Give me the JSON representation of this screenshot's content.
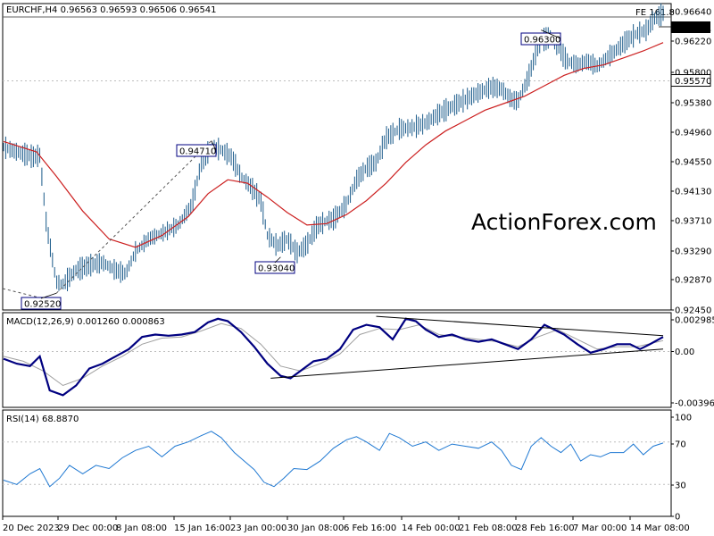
{
  "chart_data": [
    {
      "type": "candlestick",
      "symbol": "EURCHF,H4",
      "ohlc_header": "0.96563 0.96593 0.96506 0.96541",
      "moving_average_color": "#cc2020",
      "bar_color": "#1a5a8a",
      "watermark": "ActionForex.com",
      "y_ticks": [
        "0.96640",
        "0.96220",
        "0.95800",
        "0.95380",
        "0.94960",
        "0.94550",
        "0.94130",
        "0.93710",
        "0.93290",
        "0.92870",
        "0.92450"
      ],
      "ylim": [
        0.9228,
        0.9668
      ],
      "current_price": "0.96541",
      "support_level": "0.95570",
      "fib_label": "FE 161.8",
      "annotations": [
        {
          "label": "0.92520",
          "t": 0.08,
          "price": 0.9252
        },
        {
          "label": "0.94710",
          "t": 0.315,
          "price": 0.9471
        },
        {
          "label": "0.93040",
          "t": 0.42,
          "price": 0.9304
        },
        {
          "label": "0.96300",
          "t": 0.815,
          "price": 0.963
        }
      ],
      "price_path": [
        [
          0.0,
          0.9462
        ],
        [
          0.02,
          0.9455
        ],
        [
          0.045,
          0.9448
        ],
        [
          0.055,
          0.945
        ],
        [
          0.065,
          0.935
        ],
        [
          0.08,
          0.9268
        ],
        [
          0.09,
          0.9265
        ],
        [
          0.11,
          0.9285
        ],
        [
          0.13,
          0.9292
        ],
        [
          0.15,
          0.9296
        ],
        [
          0.17,
          0.9285
        ],
        [
          0.185,
          0.928
        ],
        [
          0.2,
          0.9312
        ],
        [
          0.22,
          0.933
        ],
        [
          0.245,
          0.934
        ],
        [
          0.265,
          0.935
        ],
        [
          0.285,
          0.9378
        ],
        [
          0.3,
          0.944
        ],
        [
          0.315,
          0.9462
        ],
        [
          0.33,
          0.9458
        ],
        [
          0.345,
          0.9448
        ],
        [
          0.36,
          0.942
        ],
        [
          0.375,
          0.9405
        ],
        [
          0.39,
          0.9385
        ],
        [
          0.4,
          0.9335
        ],
        [
          0.415,
          0.932
        ],
        [
          0.43,
          0.933
        ],
        [
          0.445,
          0.931
        ],
        [
          0.46,
          0.9322
        ],
        [
          0.475,
          0.9348
        ],
        [
          0.49,
          0.9356
        ],
        [
          0.5,
          0.9358
        ],
        [
          0.52,
          0.938
        ],
        [
          0.535,
          0.9415
        ],
        [
          0.55,
          0.9432
        ],
        [
          0.565,
          0.944
        ],
        [
          0.58,
          0.9475
        ],
        [
          0.6,
          0.9488
        ],
        [
          0.62,
          0.949
        ],
        [
          0.64,
          0.9496
        ],
        [
          0.66,
          0.951
        ],
        [
          0.68,
          0.952
        ],
        [
          0.7,
          0.953
        ],
        [
          0.72,
          0.954
        ],
        [
          0.74,
          0.9548
        ],
        [
          0.755,
          0.9545
        ],
        [
          0.77,
          0.953
        ],
        [
          0.78,
          0.9528
        ],
        [
          0.795,
          0.956
        ],
        [
          0.805,
          0.959
        ],
        [
          0.815,
          0.9615
        ],
        [
          0.83,
          0.962
        ],
        [
          0.84,
          0.9605
        ],
        [
          0.855,
          0.9585
        ],
        [
          0.87,
          0.958
        ],
        [
          0.885,
          0.9585
        ],
        [
          0.9,
          0.9578
        ],
        [
          0.915,
          0.959
        ],
        [
          0.93,
          0.9602
        ],
        [
          0.945,
          0.9615
        ],
        [
          0.96,
          0.9625
        ],
        [
          0.975,
          0.963
        ],
        [
          0.985,
          0.9645
        ],
        [
          1.0,
          0.9654
        ]
      ],
      "ma_path": [
        [
          0.0,
          0.947
        ],
        [
          0.05,
          0.9455
        ],
        [
          0.08,
          0.942
        ],
        [
          0.12,
          0.937
        ],
        [
          0.16,
          0.933
        ],
        [
          0.2,
          0.9318
        ],
        [
          0.24,
          0.9335
        ],
        [
          0.28,
          0.9362
        ],
        [
          0.31,
          0.9395
        ],
        [
          0.34,
          0.9415
        ],
        [
          0.37,
          0.941
        ],
        [
          0.4,
          0.939
        ],
        [
          0.43,
          0.9368
        ],
        [
          0.46,
          0.935
        ],
        [
          0.49,
          0.9352
        ],
        [
          0.52,
          0.9365
        ],
        [
          0.55,
          0.9385
        ],
        [
          0.58,
          0.941
        ],
        [
          0.61,
          0.944
        ],
        [
          0.64,
          0.9465
        ],
        [
          0.67,
          0.9485
        ],
        [
          0.7,
          0.95
        ],
        [
          0.73,
          0.9515
        ],
        [
          0.76,
          0.9525
        ],
        [
          0.79,
          0.9535
        ],
        [
          0.82,
          0.955
        ],
        [
          0.85,
          0.9565
        ],
        [
          0.88,
          0.9575
        ],
        [
          0.91,
          0.958
        ],
        [
          0.94,
          0.959
        ],
        [
          0.97,
          0.96
        ],
        [
          1.0,
          0.9612
        ]
      ],
      "fib_path": [
        [
          0.08,
          0.9252
        ],
        [
          0.315,
          0.9471
        ]
      ],
      "x_ticks": [
        "20 Dec 2023",
        "29 Dec 00:00",
        "8 Jan 08:00",
        "15 Jan 16:00",
        "23 Jan 00:00",
        "30 Jan 08:00",
        "6 Feb 16:00",
        "14 Feb 00:00",
        "21 Feb 08:00",
        "28 Feb 16:00",
        "7 Mar 00:00",
        "14 Mar 08:00"
      ]
    },
    {
      "type": "line",
      "label": "MACD(12,26,9) 0.001260 0.000863",
      "y_ticks": [
        "0.002985",
        "0.00",
        "-0.00396"
      ],
      "ylim": [
        -0.0046,
        0.0032
      ],
      "zero_value": 0.0,
      "macd_path": [
        [
          0.0,
          -0.0006
        ],
        [
          0.02,
          -0.001
        ],
        [
          0.04,
          -0.0012
        ],
        [
          0.055,
          -0.0004
        ],
        [
          0.07,
          -0.0032
        ],
        [
          0.09,
          -0.0036
        ],
        [
          0.11,
          -0.0028
        ],
        [
          0.13,
          -0.0014
        ],
        [
          0.15,
          -0.001
        ],
        [
          0.17,
          -0.0004
        ],
        [
          0.19,
          0.0002
        ],
        [
          0.21,
          0.0012
        ],
        [
          0.23,
          0.0014
        ],
        [
          0.25,
          0.0013
        ],
        [
          0.27,
          0.0014
        ],
        [
          0.29,
          0.0016
        ],
        [
          0.31,
          0.0024
        ],
        [
          0.325,
          0.0027
        ],
        [
          0.34,
          0.0025
        ],
        [
          0.36,
          0.0016
        ],
        [
          0.38,
          0.0004
        ],
        [
          0.4,
          -0.001
        ],
        [
          0.42,
          -0.002
        ],
        [
          0.435,
          -0.0022
        ],
        [
          0.45,
          -0.0016
        ],
        [
          0.47,
          -0.0008
        ],
        [
          0.49,
          -0.0006
        ],
        [
          0.51,
          0.0002
        ],
        [
          0.53,
          0.0018
        ],
        [
          0.55,
          0.0022
        ],
        [
          0.57,
          0.002
        ],
        [
          0.59,
          0.001
        ],
        [
          0.61,
          0.0027
        ],
        [
          0.625,
          0.0025
        ],
        [
          0.64,
          0.0018
        ],
        [
          0.66,
          0.0012
        ],
        [
          0.68,
          0.0014
        ],
        [
          0.7,
          0.001
        ],
        [
          0.72,
          0.0008
        ],
        [
          0.74,
          0.001
        ],
        [
          0.76,
          0.0006
        ],
        [
          0.78,
          0.0002
        ],
        [
          0.8,
          0.001
        ],
        [
          0.82,
          0.0022
        ],
        [
          0.835,
          0.0018
        ],
        [
          0.85,
          0.0014
        ],
        [
          0.87,
          0.0006
        ],
        [
          0.89,
          -0.0001
        ],
        [
          0.91,
          0.0002
        ],
        [
          0.93,
          0.0006
        ],
        [
          0.95,
          0.0006
        ],
        [
          0.965,
          0.0002
        ],
        [
          0.98,
          0.0006
        ],
        [
          1.0,
          0.0012
        ]
      ],
      "signal_path": [
        [
          0.0,
          -0.0004
        ],
        [
          0.03,
          -0.0008
        ],
        [
          0.06,
          -0.0016
        ],
        [
          0.09,
          -0.0028
        ],
        [
          0.12,
          -0.0022
        ],
        [
          0.15,
          -0.0012
        ],
        [
          0.18,
          -0.0004
        ],
        [
          0.21,
          0.0006
        ],
        [
          0.24,
          0.0011
        ],
        [
          0.27,
          0.0012
        ],
        [
          0.3,
          0.0017
        ],
        [
          0.33,
          0.0023
        ],
        [
          0.36,
          0.0019
        ],
        [
          0.39,
          0.0006
        ],
        [
          0.42,
          -0.0012
        ],
        [
          0.45,
          -0.0016
        ],
        [
          0.48,
          -0.001
        ],
        [
          0.51,
          -0.0002
        ],
        [
          0.54,
          0.0014
        ],
        [
          0.57,
          0.0019
        ],
        [
          0.6,
          0.0018
        ],
        [
          0.63,
          0.0022
        ],
        [
          0.66,
          0.0014
        ],
        [
          0.69,
          0.0012
        ],
        [
          0.72,
          0.001
        ],
        [
          0.75,
          0.0008
        ],
        [
          0.78,
          0.0004
        ],
        [
          0.81,
          0.0012
        ],
        [
          0.84,
          0.0018
        ],
        [
          0.87,
          0.001
        ],
        [
          0.9,
          0.0002
        ],
        [
          0.93,
          0.0004
        ],
        [
          0.96,
          0.0004
        ],
        [
          1.0,
          0.0009
        ]
      ],
      "trendline_upper": [
        [
          0.565,
          0.0029
        ],
        [
          1.0,
          0.0013
        ]
      ],
      "trendline_lower": [
        [
          0.405,
          -0.0022
        ],
        [
          1.0,
          0.0002
        ]
      ],
      "macd_color": "#000080",
      "signal_color": "#a0a0a0"
    },
    {
      "type": "line",
      "label": "RSI(14) 68.8870",
      "y_ticks": [
        "100",
        "70",
        "30",
        "0"
      ],
      "ylim": [
        0,
        100
      ],
      "levels": [
        70,
        30
      ],
      "rsi_color": "#1e78d2",
      "rsi_path": [
        [
          0.0,
          34
        ],
        [
          0.02,
          30
        ],
        [
          0.04,
          40
        ],
        [
          0.055,
          45
        ],
        [
          0.07,
          28
        ],
        [
          0.085,
          36
        ],
        [
          0.1,
          48
        ],
        [
          0.12,
          40
        ],
        [
          0.14,
          48
        ],
        [
          0.16,
          45
        ],
        [
          0.18,
          55
        ],
        [
          0.2,
          62
        ],
        [
          0.22,
          66
        ],
        [
          0.24,
          56
        ],
        [
          0.26,
          66
        ],
        [
          0.28,
          70
        ],
        [
          0.3,
          76
        ],
        [
          0.315,
          80
        ],
        [
          0.33,
          74
        ],
        [
          0.35,
          60
        ],
        [
          0.365,
          52
        ],
        [
          0.38,
          44
        ],
        [
          0.395,
          32
        ],
        [
          0.41,
          28
        ],
        [
          0.425,
          36
        ],
        [
          0.44,
          45
        ],
        [
          0.46,
          44
        ],
        [
          0.48,
          52
        ],
        [
          0.5,
          64
        ],
        [
          0.52,
          72
        ],
        [
          0.535,
          75
        ],
        [
          0.55,
          70
        ],
        [
          0.57,
          62
        ],
        [
          0.585,
          78
        ],
        [
          0.6,
          74
        ],
        [
          0.62,
          66
        ],
        [
          0.64,
          70
        ],
        [
          0.66,
          62
        ],
        [
          0.68,
          68
        ],
        [
          0.7,
          66
        ],
        [
          0.72,
          64
        ],
        [
          0.74,
          70
        ],
        [
          0.755,
          62
        ],
        [
          0.77,
          48
        ],
        [
          0.785,
          44
        ],
        [
          0.8,
          66
        ],
        [
          0.815,
          74
        ],
        [
          0.83,
          66
        ],
        [
          0.845,
          60
        ],
        [
          0.86,
          68
        ],
        [
          0.875,
          52
        ],
        [
          0.89,
          58
        ],
        [
          0.905,
          56
        ],
        [
          0.92,
          60
        ],
        [
          0.94,
          60
        ],
        [
          0.955,
          68
        ],
        [
          0.97,
          58
        ],
        [
          0.985,
          66
        ],
        [
          1.0,
          69
        ]
      ]
    }
  ]
}
